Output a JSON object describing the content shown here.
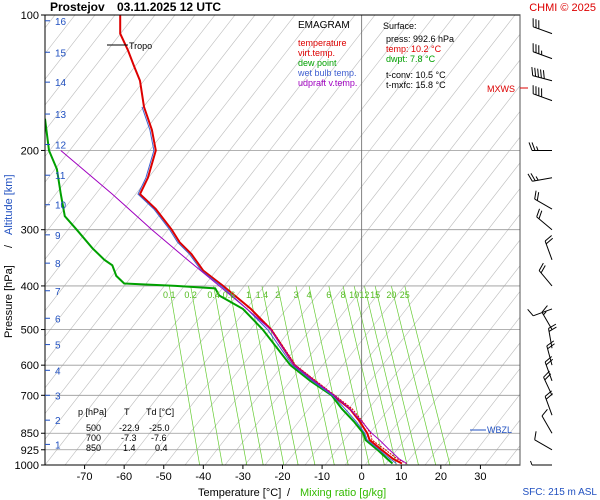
{
  "header": {
    "station": "Prostejov",
    "datetime": "03.11.2025 12 UTC",
    "copyright": "CHMI © 2025"
  },
  "legend": {
    "title": "EMAGRAM",
    "items": [
      {
        "label": "temperature",
        "color": "#dd0000"
      },
      {
        "label": "virt.temp.",
        "color": "#dd0000"
      },
      {
        "label": "dew point",
        "color": "#00a000"
      },
      {
        "label": "wet bulb temp.",
        "color": "#4060d0"
      },
      {
        "label": "udpraft v.temp.",
        "color": "#a000c0"
      }
    ]
  },
  "surface": {
    "title": "Surface:",
    "press": "press: 992.6 hPa",
    "temp": "temp: 10.2 °C",
    "dwpt": "dwpt: 7.8 °C",
    "tconv": "t-conv: 10.5 °C",
    "tmxfc": "t-mxfc: 15.8 °C"
  },
  "level_table": {
    "headers": [
      "p [hPa]",
      "T",
      "Td [°C]"
    ],
    "rows": [
      [
        "500",
        "-22.9",
        "-25.0"
      ],
      [
        "700",
        "-7.3",
        "-7.6"
      ],
      [
        "850",
        "1.4",
        "0.4"
      ]
    ]
  },
  "labels": {
    "tropo": "Tropo",
    "mxws": "MXWS",
    "wbzl": "WBZL",
    "sfc": "SFC: 215 m ASL",
    "ylabel_pressure": "Pressure [hPa]",
    "ylabel_sep": "/",
    "ylabel_alt": "Altitude [km]",
    "xlabel_temp": "Temperature [°C]",
    "xlabel_sep": "/",
    "xlabel_mix": "Mixing ratio [g/kg]"
  },
  "colors": {
    "temperature": "#dd0000",
    "dewpoint": "#00a000",
    "wetbulb": "#4060d0",
    "updraft": "#a000c0",
    "mixing": "#66cc33",
    "isotherm": "#bbbbbb",
    "grid": "#999999",
    "marker": "#e00000",
    "wbzl": "#2050c0"
  },
  "chart_data": {
    "type": "line",
    "title": "Prostejov 03.11.2025 12 UTC",
    "xlabel": "Temperature [°C] / Mixing ratio [g/kg]",
    "ylabel": "Pressure [hPa] / Altitude [km]",
    "y_scale": "log",
    "xlim": [
      -80,
      40
    ],
    "ylim": [
      1000,
      100
    ],
    "x_ticks": [
      -70,
      -60,
      -50,
      -40,
      -30,
      -20,
      -10,
      0,
      10,
      20,
      30
    ],
    "pressure_ticks": [
      100,
      200,
      300,
      400,
      500,
      600,
      700,
      850,
      925,
      1000
    ],
    "altitude_ticks_km": [
      1,
      2,
      3,
      4,
      5,
      6,
      7,
      8,
      9,
      10,
      11,
      12,
      13,
      14,
      15,
      16
    ],
    "altitude_tick_pressures": [
      900,
      795,
      700,
      616,
      540,
      472,
      410,
      356,
      308,
      264,
      227,
      194,
      166,
      141,
      121,
      103
    ],
    "mixing_ratio_labels": [
      "0.1",
      "0.2",
      "0.4",
      "0.6",
      "1",
      "1.4",
      "2",
      "3",
      "4",
      "6",
      "8",
      "10",
      "12",
      "15",
      "20",
      "25"
    ],
    "mixing_ratio_label_temps": [
      -48.6,
      -43.2,
      -37.4,
      -33.5,
      -28.6,
      -25.2,
      -21.2,
      -16.6,
      -13.3,
      -8.3,
      -4.7,
      -1.9,
      0.7,
      3.4,
      7.5,
      10.9
    ],
    "mixing_ratio_label_pressure": 400,
    "grid": true,
    "surface_pressure": 992.6,
    "tropopause_pressure": 120,
    "mxws_pressure": 140,
    "wbzl_pressure": 840,
    "series": [
      {
        "name": "temperature",
        "points": [
          [
            10.2,
            992.6
          ],
          [
            8,
            970
          ],
          [
            5,
            925
          ],
          [
            2,
            880
          ],
          [
            1.4,
            850
          ],
          [
            -0.5,
            800
          ],
          [
            -3,
            750
          ],
          [
            -7.3,
            700
          ],
          [
            -12,
            650
          ],
          [
            -17,
            600
          ],
          [
            -22.9,
            500
          ],
          [
            -28,
            450
          ],
          [
            -35,
            400
          ],
          [
            -40,
            370
          ],
          [
            -43,
            340
          ],
          [
            -46,
            320
          ],
          [
            -48,
            300
          ],
          [
            -52,
            270
          ],
          [
            -56,
            250
          ],
          [
            -54,
            230
          ],
          [
            -52,
            200
          ],
          [
            -53,
            180
          ],
          [
            -55,
            160
          ],
          [
            -56,
            140
          ],
          [
            -57.5,
            130
          ],
          [
            -59,
            120
          ],
          [
            -61,
            110
          ],
          [
            -61,
            100
          ]
        ]
      },
      {
        "name": "virt.temp.",
        "points": [
          [
            11.4,
            992.6
          ],
          [
            9,
            970
          ],
          [
            6,
            925
          ],
          [
            2.6,
            880
          ],
          [
            2.2,
            850
          ],
          [
            0.2,
            800
          ],
          [
            -2.4,
            750
          ],
          [
            -6.8,
            700
          ],
          [
            -11.6,
            650
          ],
          [
            -16.7,
            600
          ],
          [
            -22.7,
            500
          ],
          [
            -27.9,
            450
          ],
          [
            -34.9,
            400
          ],
          [
            -40,
            370
          ],
          [
            -43,
            340
          ],
          [
            -46,
            320
          ],
          [
            -48,
            300
          ],
          [
            -52,
            270
          ],
          [
            -56,
            250
          ],
          [
            -54,
            230
          ],
          [
            -52,
            200
          ],
          [
            -53,
            180
          ],
          [
            -55,
            160
          ],
          [
            -56,
            140
          ],
          [
            -57.5,
            130
          ],
          [
            -59,
            120
          ],
          [
            -61,
            110
          ],
          [
            -61,
            100
          ]
        ]
      },
      {
        "name": "dew point",
        "points": [
          [
            7.8,
            992.6
          ],
          [
            6.5,
            970
          ],
          [
            4,
            925
          ],
          [
            1,
            880
          ],
          [
            0.4,
            850
          ],
          [
            -2,
            800
          ],
          [
            -5,
            750
          ],
          [
            -7.6,
            700
          ],
          [
            -13,
            650
          ],
          [
            -18,
            600
          ],
          [
            -25,
            500
          ],
          [
            -30,
            450
          ],
          [
            -36,
            420
          ],
          [
            -37,
            405
          ],
          [
            -47,
            400
          ],
          [
            -60,
            395
          ],
          [
            -62,
            380
          ],
          [
            -63,
            360
          ],
          [
            -65,
            350
          ],
          [
            -68,
            330
          ],
          [
            -72,
            300
          ],
          [
            -75,
            280
          ],
          [
            -76,
            250
          ],
          [
            -77,
            220
          ],
          [
            -79,
            200
          ],
          [
            -80,
            170
          ]
        ]
      },
      {
        "name": "wet bulb temp.",
        "points": [
          [
            8.8,
            992.6
          ],
          [
            7.2,
            970
          ],
          [
            4.4,
            925
          ],
          [
            1.4,
            880
          ],
          [
            0.8,
            850
          ],
          [
            -1.4,
            800
          ],
          [
            -4.2,
            750
          ],
          [
            -7.4,
            700
          ],
          [
            -12.5,
            650
          ],
          [
            -17.5,
            600
          ],
          [
            -23.8,
            500
          ],
          [
            -29,
            450
          ],
          [
            -35.5,
            400
          ],
          [
            -40.5,
            370
          ],
          [
            -43.5,
            340
          ],
          [
            -46.5,
            320
          ],
          [
            -48.5,
            300
          ],
          [
            -52.5,
            270
          ],
          [
            -56.5,
            250
          ],
          [
            -54.5,
            230
          ],
          [
            -52.5,
            200
          ],
          [
            -53.5,
            180
          ],
          [
            -55.5,
            160
          ]
        ]
      },
      {
        "name": "udpraft v.temp.",
        "points": [
          [
            11.4,
            992.6
          ],
          [
            9.5,
            970
          ],
          [
            7,
            925
          ],
          [
            4.5,
            880
          ],
          [
            2.5,
            850
          ],
          [
            0,
            800
          ],
          [
            -3,
            750
          ],
          [
            -7,
            700
          ],
          [
            -12,
            650
          ],
          [
            -17,
            600
          ],
          [
            -23,
            500
          ],
          [
            -29,
            450
          ],
          [
            -36,
            400
          ],
          [
            -44,
            350
          ],
          [
            -53,
            300
          ],
          [
            -63,
            250
          ],
          [
            -76,
            200
          ]
        ]
      }
    ],
    "wind_profile": [
      {
        "p": 110,
        "dir": 290,
        "kt": 30
      },
      {
        "p": 125,
        "dir": 290,
        "kt": 35
      },
      {
        "p": 140,
        "dir": 285,
        "kt": 50
      },
      {
        "p": 155,
        "dir": 290,
        "kt": 40
      },
      {
        "p": 200,
        "dir": 270,
        "kt": 25
      },
      {
        "p": 230,
        "dir": 260,
        "kt": 25
      },
      {
        "p": 270,
        "dir": 300,
        "kt": 20
      },
      {
        "p": 300,
        "dir": 310,
        "kt": 20
      },
      {
        "p": 350,
        "dir": 340,
        "kt": 20
      },
      {
        "p": 400,
        "dir": 320,
        "kt": 20
      },
      {
        "p": 450,
        "dir": 250,
        "kt": 10
      },
      {
        "p": 500,
        "dir": 330,
        "kt": 15
      },
      {
        "p": 550,
        "dir": 350,
        "kt": 20
      },
      {
        "p": 600,
        "dir": 345,
        "kt": 20
      },
      {
        "p": 650,
        "dir": 340,
        "kt": 20
      },
      {
        "p": 700,
        "dir": 335,
        "kt": 20
      },
      {
        "p": 775,
        "dir": 340,
        "kt": 20
      },
      {
        "p": 850,
        "dir": 330,
        "kt": 10
      },
      {
        "p": 925,
        "dir": 300,
        "kt": 10
      },
      {
        "p": 1000,
        "dir": 270,
        "kt": 5
      }
    ]
  }
}
